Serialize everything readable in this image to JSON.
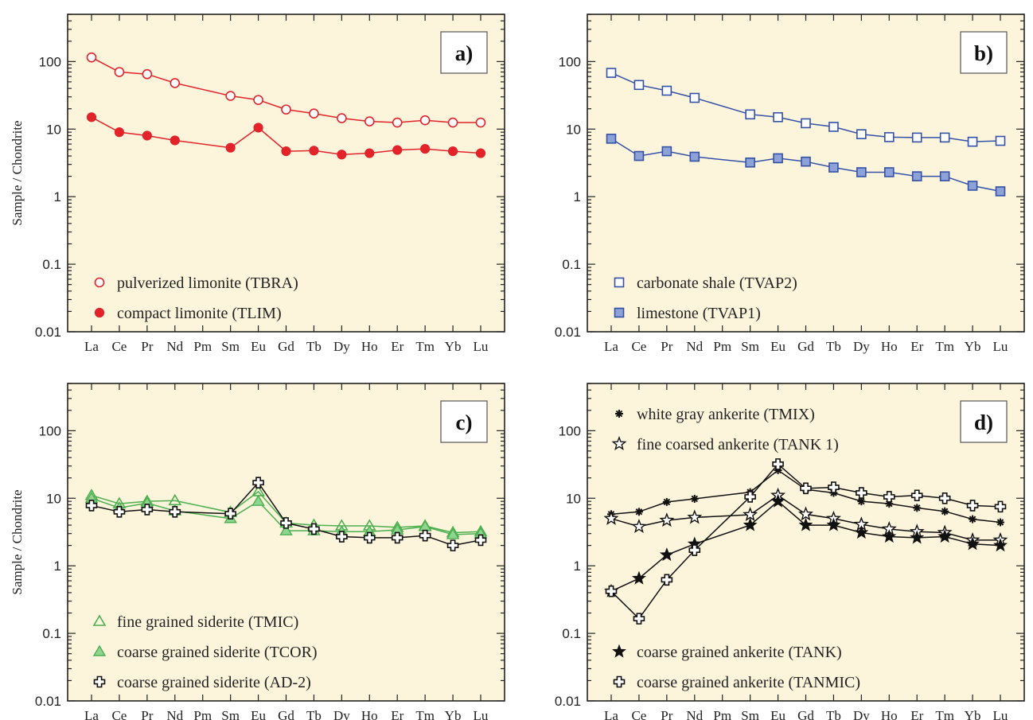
{
  "chart_data": [
    {
      "type": "line",
      "panel_label": "a)",
      "ylabel": "Sample / Chondrite",
      "yscale": "log",
      "ylim": [
        0.01,
        500
      ],
      "yticks": [
        0.01,
        0.1,
        1,
        10,
        100
      ],
      "ytick_labels": [
        "0.01",
        "0.1",
        "1",
        "10",
        "100"
      ],
      "categories": [
        "La",
        "Ce",
        "Pr",
        "Nd",
        "Pm",
        "Sm",
        "Eu",
        "Gd",
        "Tb",
        "Dy",
        "Ho",
        "Er",
        "Tm",
        "Yb",
        "Lu"
      ],
      "legend_position": "bottom-left",
      "series": [
        {
          "name": "pulverized limonite (TBRA)",
          "marker": "circle-open",
          "color": "#e2232a",
          "values": [
            115,
            70,
            65,
            48,
            null,
            31,
            27,
            19.5,
            17,
            14.5,
            13,
            12.5,
            13.5,
            12.5,
            12.5
          ]
        },
        {
          "name": "compact limonite (TLIM)",
          "marker": "circle-filled",
          "color": "#e2232a",
          "values": [
            15,
            9,
            8,
            6.8,
            null,
            5.3,
            10.5,
            4.7,
            4.8,
            4.2,
            4.4,
            4.9,
            5.1,
            4.7,
            4.4
          ]
        }
      ]
    },
    {
      "type": "line",
      "panel_label": "b)",
      "ylabel": "",
      "yscale": "log",
      "ylim": [
        0.01,
        500
      ],
      "yticks": [
        0.01,
        0.1,
        1,
        10,
        100
      ],
      "ytick_labels": [
        "0.01",
        "0.1",
        "1",
        "10",
        "100"
      ],
      "categories": [
        "La",
        "Ce",
        "Pr",
        "Nd",
        "Pm",
        "Sm",
        "Eu",
        "Gd",
        "Tb",
        "Dy",
        "Ho",
        "Er",
        "Tm",
        "Yb",
        "Lu"
      ],
      "legend_position": "bottom-left",
      "series": [
        {
          "name": "carbonate shale (TVAP2)",
          "marker": "square-open",
          "color": "#3451a8",
          "values": [
            68,
            45,
            37,
            29,
            null,
            16.5,
            15,
            12.2,
            10.8,
            8.4,
            7.6,
            7.5,
            7.5,
            6.5,
            6.7
          ]
        },
        {
          "name": "limestone (TVAP1)",
          "marker": "square-filled",
          "color": "#3451a8",
          "values": [
            7.2,
            4,
            4.7,
            3.9,
            null,
            3.2,
            3.7,
            3.3,
            2.7,
            2.3,
            2.3,
            2,
            2,
            1.45,
            1.2
          ]
        }
      ]
    },
    {
      "type": "line",
      "panel_label": "c)",
      "ylabel": "Sample / Chondrite",
      "yscale": "log",
      "ylim": [
        0.01,
        500
      ],
      "yticks": [
        0.01,
        0.1,
        1,
        10,
        100
      ],
      "ytick_labels": [
        "0.01",
        "0.1",
        "1",
        "10",
        "100"
      ],
      "categories": [
        "La",
        "Ce",
        "Pr",
        "Nd",
        "Pm",
        "Sm",
        "Eu",
        "Gd",
        "Tb",
        "Dy",
        "Ho",
        "Er",
        "Tm",
        "Yb",
        "Lu"
      ],
      "legend_position": "bottom-left",
      "series": [
        {
          "name": "fine grained siderite (TMIC)",
          "marker": "triangle-open",
          "color": "#4caf50",
          "values": [
            11,
            8.3,
            9,
            9.2,
            null,
            6.2,
            12.5,
            4.3,
            4,
            3.9,
            3.9,
            3.7,
            3.9,
            3.1,
            3.2
          ]
        },
        {
          "name": "coarse grained siderite (TCOR)",
          "marker": "triangle-filled",
          "color": "#4caf50",
          "values": [
            10,
            7.2,
            8.5,
            6.5,
            null,
            5,
            9,
            3.3,
            3.3,
            3.2,
            3.2,
            3.4,
            3.8,
            2.9,
            3
          ]
        },
        {
          "name": "coarse grained siderite (AD-2)",
          "marker": "cross-open",
          "color": "#111111",
          "values": [
            7.8,
            6.3,
            6.8,
            6.3,
            null,
            5.9,
            17,
            4.3,
            3.5,
            2.7,
            2.6,
            2.6,
            2.8,
            2,
            2.4
          ]
        }
      ]
    },
    {
      "type": "line",
      "panel_label": "d)",
      "ylabel": "",
      "yscale": "log",
      "ylim": [
        0.01,
        500
      ],
      "yticks": [
        0.01,
        0.1,
        1,
        10,
        100
      ],
      "ytick_labels": [
        "0.01",
        "0.1",
        "1",
        "10",
        "100"
      ],
      "categories": [
        "La",
        "Ce",
        "Pr",
        "Nd",
        "Pm",
        "Sm",
        "Eu",
        "Gd",
        "Tb",
        "Dy",
        "Ho",
        "Er",
        "Tm",
        "Yb",
        "Lu"
      ],
      "legend_position": "top-left and bottom-left",
      "series": [
        {
          "name": "white gray ankerite (TMIX)",
          "marker": "asterisk",
          "color": "#111111",
          "legend": "top",
          "values": [
            5.8,
            6.3,
            8.8,
            9.8,
            null,
            12.3,
            26,
            13.5,
            12,
            9,
            8.3,
            7.2,
            6.4,
            4.9,
            4.4
          ]
        },
        {
          "name": "fine coarsed ankerite (TANK 1)",
          "marker": "star-open",
          "color": "#111111",
          "legend": "top",
          "values": [
            5,
            3.8,
            4.7,
            5.2,
            null,
            5.7,
            11,
            5.8,
            5,
            4.1,
            3.5,
            3.2,
            3.1,
            2.4,
            2.4
          ]
        },
        {
          "name": "coarse grained ankerite (TANK)",
          "marker": "star-filled",
          "color": "#111111",
          "legend": "bottom",
          "values": [
            0.42,
            0.65,
            1.45,
            2.1,
            null,
            4,
            9,
            4,
            4,
            3.1,
            2.7,
            2.6,
            2.7,
            2.1,
            2
          ]
        },
        {
          "name": "coarse grained ankerite (TANMIC)",
          "marker": "cross-open",
          "color": "#111111",
          "legend": "bottom",
          "values": [
            0.42,
            0.165,
            0.62,
            1.7,
            null,
            10.5,
            32,
            14,
            14.5,
            12,
            10.5,
            11,
            10,
            7.8,
            7.5
          ]
        }
      ]
    }
  ],
  "style": {
    "plot_background": "#fdf4dc",
    "frame_color": "#222222",
    "label_box_background": "#ffffff"
  }
}
